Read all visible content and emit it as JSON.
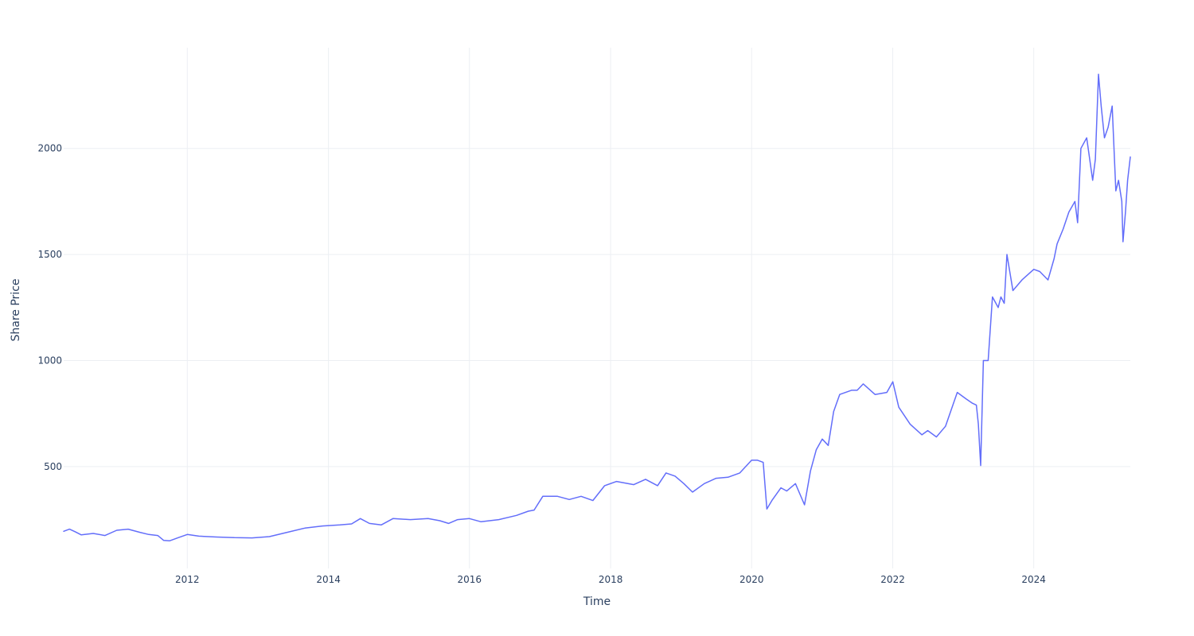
{
  "chart_data": {
    "type": "line",
    "title": "",
    "xlabel": "Time",
    "ylabel": "Share Price",
    "xlim": [
      "2010-04-01",
      "2025-05-15"
    ],
    "ylim": [
      20,
      2475
    ],
    "grid": true,
    "legend": "none",
    "colors": {
      "line": "#636efa",
      "grid": "#eceff3",
      "text": "#2a3f5f"
    },
    "x_ticks": [
      {
        "value": "2012-01-01",
        "label": "2012"
      },
      {
        "value": "2014-01-01",
        "label": "2014"
      },
      {
        "value": "2016-01-01",
        "label": "2016"
      },
      {
        "value": "2018-01-01",
        "label": "2018"
      },
      {
        "value": "2020-01-01",
        "label": "2020"
      },
      {
        "value": "2022-01-01",
        "label": "2022"
      },
      {
        "value": "2024-01-01",
        "label": "2024"
      }
    ],
    "y_ticks": [
      {
        "value": 500,
        "label": "500"
      },
      {
        "value": 1000,
        "label": "1000"
      },
      {
        "value": 1500,
        "label": "1500"
      },
      {
        "value": 2000,
        "label": "2000"
      }
    ],
    "series": [
      {
        "x": [
          "2010-04-01",
          "2010-05-01",
          "2010-06-01",
          "2010-07-01",
          "2010-09-01",
          "2010-11-01",
          "2011-01-01",
          "2011-03-01",
          "2011-05-01",
          "2011-06-15",
          "2011-08-01",
          "2011-09-01",
          "2011-10-01",
          "2011-11-15",
          "2012-01-01",
          "2012-03-01",
          "2012-06-01",
          "2012-09-01",
          "2012-12-01",
          "2013-03-01",
          "2013-06-01",
          "2013-09-01",
          "2013-12-01",
          "2014-03-01",
          "2014-05-01",
          "2014-06-15",
          "2014-08-01",
          "2014-10-01",
          "2014-12-01",
          "2015-03-01",
          "2015-06-01",
          "2015-08-01",
          "2015-09-15",
          "2015-11-01",
          "2016-01-01",
          "2016-03-01",
          "2016-06-01",
          "2016-09-01",
          "2016-11-01",
          "2016-12-01",
          "2017-01-15",
          "2017-04-01",
          "2017-06-01",
          "2017-08-01",
          "2017-10-01",
          "2017-12-01",
          "2018-02-01",
          "2018-05-01",
          "2018-07-01",
          "2018-09-01",
          "2018-10-15",
          "2018-12-01",
          "2019-01-15",
          "2019-03-01",
          "2019-05-01",
          "2019-07-01",
          "2019-09-01",
          "2019-11-01",
          "2020-01-01",
          "2020-02-01",
          "2020-03-01",
          "2020-03-20",
          "2020-04-15",
          "2020-06-01",
          "2020-07-01",
          "2020-08-15",
          "2020-10-01",
          "2020-11-01",
          "2020-12-01",
          "2021-01-01",
          "2021-02-01",
          "2021-03-01",
          "2021-04-01",
          "2021-06-01",
          "2021-07-01",
          "2021-08-01",
          "2021-10-01",
          "2021-12-01",
          "2022-01-01",
          "2022-02-01",
          "2022-04-01",
          "2022-06-01",
          "2022-07-01",
          "2022-08-15",
          "2022-10-01",
          "2022-12-01",
          "2023-01-15",
          "2023-02-15",
          "2023-03-10",
          "2023-03-20",
          "2023-04-01",
          "2023-04-15",
          "2023-05-10",
          "2023-06-01",
          "2023-07-01",
          "2023-07-15",
          "2023-08-01",
          "2023-08-15",
          "2023-09-15",
          "2023-11-01",
          "2024-01-01",
          "2024-02-01",
          "2024-03-15",
          "2024-04-15",
          "2024-05-01",
          "2024-06-01",
          "2024-07-01",
          "2024-08-01",
          "2024-08-15",
          "2024-09-01",
          "2024-10-01",
          "2024-11-01",
          "2024-11-15",
          "2024-12-01",
          "2024-12-15",
          "2025-01-01",
          "2025-01-20",
          "2025-02-10",
          "2025-03-01",
          "2025-03-15",
          "2025-04-01",
          "2025-04-07",
          "2025-04-20",
          "2025-05-01",
          "2025-05-15"
        ],
        "y": [
          195,
          205,
          192,
          178,
          185,
          175,
          200,
          205,
          190,
          180,
          175,
          152,
          150,
          165,
          180,
          172,
          168,
          165,
          164,
          170,
          190,
          210,
          220,
          225,
          230,
          255,
          232,
          225,
          255,
          250,
          255,
          245,
          232,
          250,
          255,
          240,
          250,
          270,
          290,
          295,
          360,
          360,
          345,
          360,
          340,
          410,
          430,
          415,
          440,
          410,
          470,
          455,
          420,
          380,
          420,
          445,
          450,
          470,
          530,
          530,
          520,
          300,
          340,
          400,
          385,
          420,
          320,
          480,
          580,
          630,
          600,
          760,
          840,
          860,
          860,
          890,
          840,
          850,
          900,
          780,
          700,
          650,
          670,
          640,
          690,
          850,
          820,
          800,
          790,
          700,
          505,
          1000,
          1000,
          1300,
          1250,
          1300,
          1270,
          1500,
          1330,
          1380,
          1430,
          1420,
          1380,
          1480,
          1550,
          1620,
          1700,
          1750,
          1650,
          2000,
          2050,
          1850,
          1950,
          2350,
          2200,
          2050,
          2100,
          2200,
          1800,
          1850,
          1750,
          1560,
          1700,
          1850,
          1960
        ]
      }
    ]
  }
}
